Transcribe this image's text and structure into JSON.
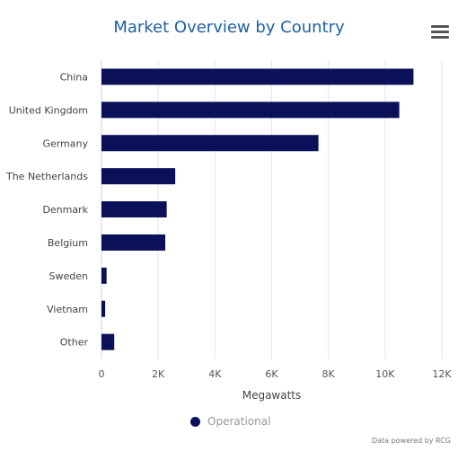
{
  "title": "Market Overview by Country",
  "menu_icon": "hamburger-menu-icon",
  "credit": "Data powered by RCG",
  "colors": {
    "bar": "#0b1159",
    "title": "#1f5fa8",
    "grid": "#e6e6e6"
  },
  "chart_data": {
    "type": "bar",
    "orientation": "horizontal",
    "title": "Market Overview by Country",
    "categories": [
      "China",
      "United Kingdom",
      "Germany",
      "The Netherlands",
      "Denmark",
      "Belgium",
      "Sweden",
      "Vietnam",
      "Other"
    ],
    "series": [
      {
        "name": "Operational",
        "values": [
          11000,
          10500,
          7650,
          2600,
          2300,
          2250,
          180,
          130,
          450
        ]
      }
    ],
    "xlabel": "Megawatts",
    "ylabel": "",
    "xlim": [
      0,
      12000
    ],
    "ticks": [
      0,
      2000,
      4000,
      6000,
      8000,
      10000,
      12000
    ],
    "tick_labels": [
      "0",
      "2K",
      "4K",
      "6K",
      "8K",
      "10K",
      "12K"
    ],
    "grid": "vertical",
    "legend": "bottom-center"
  }
}
